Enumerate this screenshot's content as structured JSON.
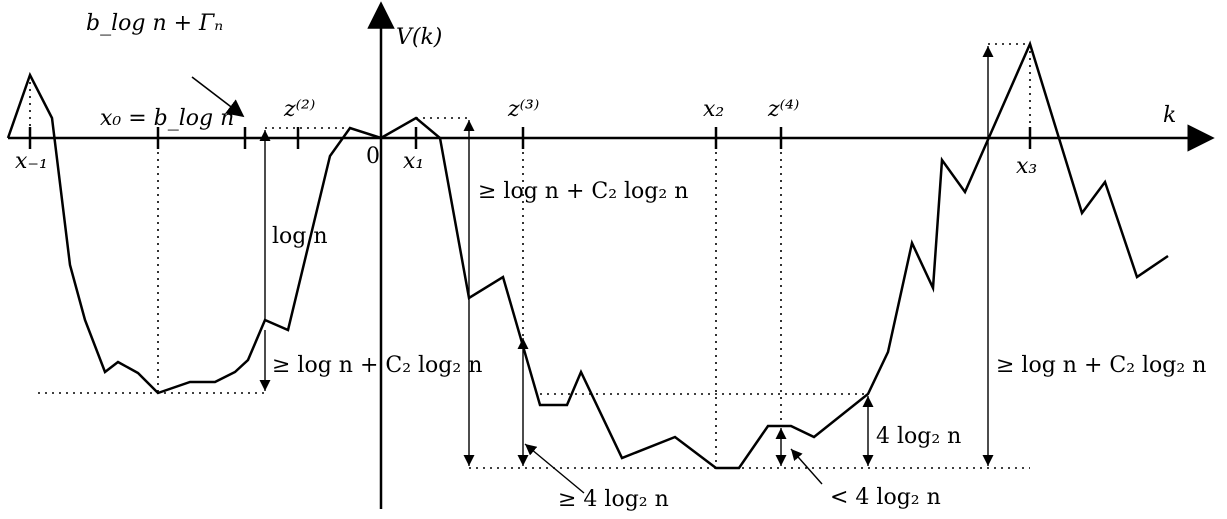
{
  "axes": {
    "y_label": "V(k)",
    "x_label": "k",
    "origin_label": "0"
  },
  "point_labels": {
    "x_minus_1": "x₋₁",
    "x0": "x₀ = b_log n",
    "x1": "x₁",
    "x2": "x₂",
    "x3": "x₃",
    "z2": "z⁽²⁾",
    "z3": "z⁽³⁾",
    "z4": "z⁽⁴⁾",
    "b_gamma": "b_log n + Γₙ"
  },
  "annotations": {
    "log_n": "log n",
    "left_depth": "≥ log n + C₂ log₂ n",
    "mid_depth": "≥ log n + C₂ log₂ n",
    "right_height": "≥ log n + C₂ log₂ n",
    "z3_depth": "≥ 4 log₂ n",
    "z4_depth": "< 4 log₂ n",
    "right_small": "4 log₂ n"
  }
}
